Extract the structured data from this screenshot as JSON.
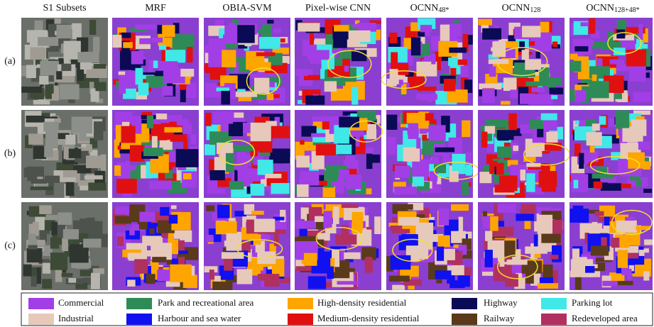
{
  "columns": [
    {
      "text": "S1 Subsets"
    },
    {
      "text": "MRF"
    },
    {
      "text": "OBIA-SVM"
    },
    {
      "text": "Pixel-wise CNN"
    },
    {
      "text": "OCNN",
      "sub": "48*"
    },
    {
      "text": "OCNN",
      "sub": "128"
    },
    {
      "text": "OCNN",
      "sub": "128+48*"
    }
  ],
  "rows": [
    "(a)",
    "(b)",
    "(c)"
  ],
  "legend": [
    {
      "label": "Commercial",
      "color": "#a23ee6"
    },
    {
      "label": "Industrial",
      "color": "#e6c9bb"
    },
    {
      "label": "Park and recreational area",
      "color": "#2e8b57"
    },
    {
      "label": "Harbour and sea water",
      "color": "#1010f0"
    },
    {
      "label": "High-density residential",
      "color": "#ffa500"
    },
    {
      "label": "Medium-density residential",
      "color": "#e01010"
    },
    {
      "label": "Highway",
      "color": "#0a0a55"
    },
    {
      "label": "Railway",
      "color": "#5a3a1a"
    },
    {
      "label": "Parking lot",
      "color": "#40e8e8"
    },
    {
      "label": "Redeveloped area",
      "color": "#b03060"
    }
  ]
}
